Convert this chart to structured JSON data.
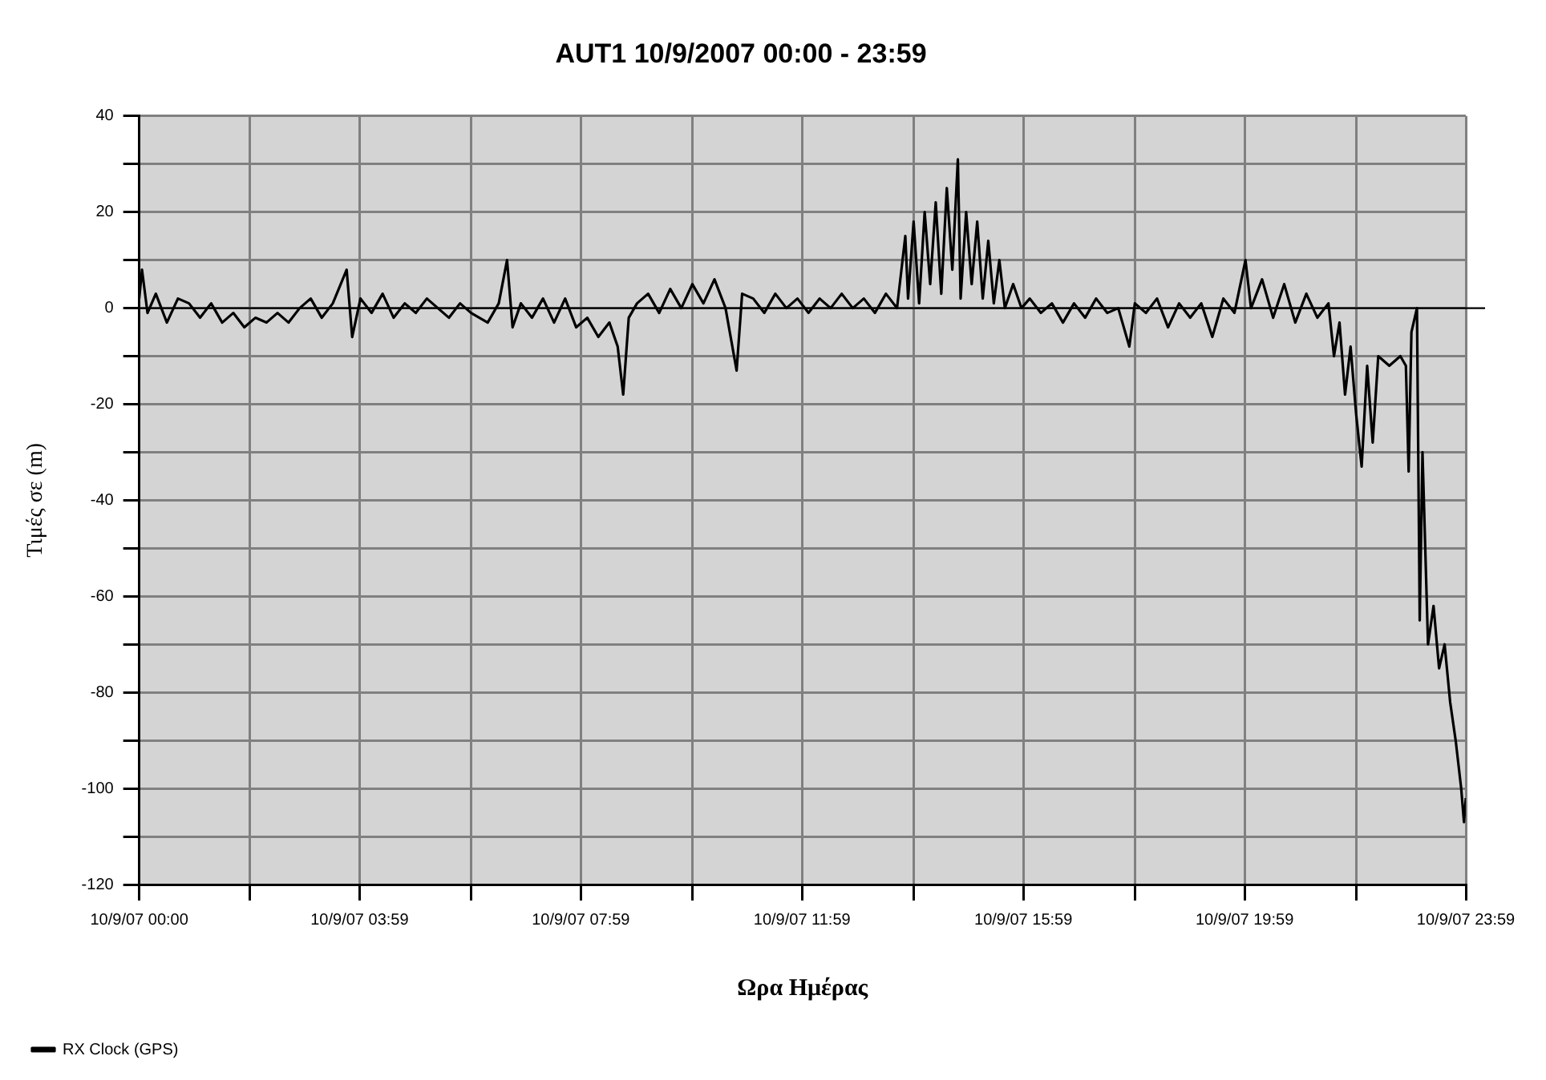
{
  "chart_data": {
    "type": "line",
    "title": "AUT1 10/9/2007 00:00 - 23:59",
    "xlabel": "Ωρα Ημέρας",
    "ylabel": "Τιμές σε (m)",
    "x": [
      "2007-09-10T00:00",
      "2007-09-10T00:03",
      "2007-09-10T00:09",
      "2007-09-10T00:18",
      "2007-09-10T00:30",
      "2007-09-10T00:42",
      "2007-09-10T00:54",
      "2007-09-10T01:06",
      "2007-09-10T01:18",
      "2007-09-10T01:30",
      "2007-09-10T01:42",
      "2007-09-10T01:54",
      "2007-09-10T02:06",
      "2007-09-10T02:18",
      "2007-09-10T02:30",
      "2007-09-10T02:42",
      "2007-09-10T02:54",
      "2007-09-10T03:06",
      "2007-09-10T03:18",
      "2007-09-10T03:30",
      "2007-09-10T03:45",
      "2007-09-10T03:51",
      "2007-09-10T04:00",
      "2007-09-10T04:12",
      "2007-09-10T04:24",
      "2007-09-10T04:36",
      "2007-09-10T04:48",
      "2007-09-10T05:00",
      "2007-09-10T05:12",
      "2007-09-10T05:24",
      "2007-09-10T05:36",
      "2007-09-10T05:48",
      "2007-09-10T06:00",
      "2007-09-10T06:18",
      "2007-09-10T06:30",
      "2007-09-10T06:39",
      "2007-09-10T06:45",
      "2007-09-10T06:54",
      "2007-09-10T07:06",
      "2007-09-10T07:18",
      "2007-09-10T07:30",
      "2007-09-10T07:42",
      "2007-09-10T07:54",
      "2007-09-10T08:06",
      "2007-09-10T08:18",
      "2007-09-10T08:30",
      "2007-09-10T08:39",
      "2007-09-10T08:45",
      "2007-09-10T08:51",
      "2007-09-10T09:00",
      "2007-09-10T09:12",
      "2007-09-10T09:24",
      "2007-09-10T09:36",
      "2007-09-10T09:48",
      "2007-09-10T10:00",
      "2007-09-10T10:12",
      "2007-09-10T10:24",
      "2007-09-10T10:36",
      "2007-09-10T10:48",
      "2007-09-10T10:54",
      "2007-09-10T11:06",
      "2007-09-10T11:18",
      "2007-09-10T11:30",
      "2007-09-10T11:42",
      "2007-09-10T11:54",
      "2007-09-10T12:06",
      "2007-09-10T12:18",
      "2007-09-10T12:30",
      "2007-09-10T12:42",
      "2007-09-10T12:54",
      "2007-09-10T13:06",
      "2007-09-10T13:18",
      "2007-09-10T13:30",
      "2007-09-10T13:42",
      "2007-09-10T13:51",
      "2007-09-10T13:54",
      "2007-09-10T14:00",
      "2007-09-10T14:06",
      "2007-09-10T14:12",
      "2007-09-10T14:18",
      "2007-09-10T14:24",
      "2007-09-10T14:30",
      "2007-09-10T14:36",
      "2007-09-10T14:42",
      "2007-09-10T14:48",
      "2007-09-10T14:51",
      "2007-09-10T14:57",
      "2007-09-10T15:03",
      "2007-09-10T15:09",
      "2007-09-10T15:15",
      "2007-09-10T15:21",
      "2007-09-10T15:27",
      "2007-09-10T15:33",
      "2007-09-10T15:39",
      "2007-09-10T15:48",
      "2007-09-10T15:57",
      "2007-09-10T16:06",
      "2007-09-10T16:18",
      "2007-09-10T16:30",
      "2007-09-10T16:42",
      "2007-09-10T16:54",
      "2007-09-10T17:06",
      "2007-09-10T17:18",
      "2007-09-10T17:30",
      "2007-09-10T17:42",
      "2007-09-10T17:54",
      "2007-09-10T18:00",
      "2007-09-10T18:12",
      "2007-09-10T18:24",
      "2007-09-10T18:36",
      "2007-09-10T18:48",
      "2007-09-10T19:00",
      "2007-09-10T19:12",
      "2007-09-10T19:24",
      "2007-09-10T19:36",
      "2007-09-10T19:48",
      "2007-09-10T20:00",
      "2007-09-10T20:06",
      "2007-09-10T20:18",
      "2007-09-10T20:30",
      "2007-09-10T20:42",
      "2007-09-10T20:54",
      "2007-09-10T21:06",
      "2007-09-10T21:18",
      "2007-09-10T21:30",
      "2007-09-10T21:36",
      "2007-09-10T21:42",
      "2007-09-10T21:48",
      "2007-09-10T21:54",
      "2007-09-10T22:00",
      "2007-09-10T22:06",
      "2007-09-10T22:12",
      "2007-09-10T22:18",
      "2007-09-10T22:24",
      "2007-09-10T22:36",
      "2007-09-10T22:48",
      "2007-09-10T22:54",
      "2007-09-10T22:57",
      "2007-09-10T23:00",
      "2007-09-10T23:06",
      "2007-09-10T23:09",
      "2007-09-10T23:12",
      "2007-09-10T23:18",
      "2007-09-10T23:24",
      "2007-09-10T23:30",
      "2007-09-10T23:36",
      "2007-09-10T23:42",
      "2007-09-10T23:48",
      "2007-09-10T23:54",
      "2007-09-10T23:57",
      "2007-09-10T23:59"
    ],
    "series": [
      {
        "name": "RX Clock (GPS)",
        "color": "#000000",
        "values": [
          2,
          8,
          -1,
          3,
          -3,
          2,
          1,
          -2,
          1,
          -3,
          -1,
          -4,
          -2,
          -3,
          -1,
          -3,
          0,
          2,
          -2,
          1,
          8,
          -6,
          2,
          -1,
          3,
          -2,
          1,
          -1,
          2,
          0,
          -2,
          1,
          -1,
          -3,
          1,
          10,
          -4,
          1,
          -2,
          2,
          -3,
          2,
          -4,
          -2,
          -6,
          -3,
          -8,
          -18,
          -2,
          1,
          3,
          -1,
          4,
          0,
          5,
          1,
          6,
          0,
          -13,
          3,
          2,
          -1,
          3,
          0,
          2,
          -1,
          2,
          0,
          3,
          0,
          2,
          -1,
          3,
          0,
          15,
          2,
          18,
          1,
          20,
          5,
          22,
          3,
          25,
          8,
          31,
          2,
          20,
          5,
          18,
          2,
          14,
          1,
          10,
          0,
          5,
          0,
          2,
          -1,
          1,
          -3,
          1,
          -2,
          2,
          -1,
          0,
          -8,
          1,
          -1,
          2,
          -4,
          1,
          -2,
          1,
          -6,
          2,
          -1,
          10,
          0,
          6,
          -2,
          5,
          -3,
          3,
          -2,
          1,
          -10,
          -3,
          -18,
          -8,
          -22,
          -33,
          -12,
          -28,
          -10,
          -12,
          -10,
          -12,
          -34,
          -5,
          0,
          -65,
          -30,
          -70,
          -62,
          -75,
          -70,
          -82,
          -90,
          -100,
          -107,
          -102
        ]
      }
    ],
    "xlim": [
      "2007-09-10T00:00",
      "2007-09-10T23:59"
    ],
    "xticks": [
      {
        "value": "2007-09-10T00:00",
        "label": "10/9/07 00:00"
      },
      {
        "value": "2007-09-10T02:00",
        "label": null
      },
      {
        "value": "2007-09-10T03:59",
        "label": "10/9/07 03:59"
      },
      {
        "value": "2007-09-10T06:00",
        "label": null
      },
      {
        "value": "2007-09-10T07:59",
        "label": "10/9/07 07:59"
      },
      {
        "value": "2007-09-10T10:00",
        "label": null
      },
      {
        "value": "2007-09-10T11:59",
        "label": "10/9/07 11:59"
      },
      {
        "value": "2007-09-10T14:00",
        "label": null
      },
      {
        "value": "2007-09-10T15:59",
        "label": "10/9/07 15:59"
      },
      {
        "value": "2007-09-10T18:00",
        "label": null
      },
      {
        "value": "2007-09-10T19:59",
        "label": "10/9/07 19:59"
      },
      {
        "value": "2007-09-10T22:00",
        "label": null
      },
      {
        "value": "2007-09-10T23:59",
        "label": "10/9/07 23:59"
      }
    ],
    "ylim": [
      -120,
      40
    ],
    "yticks": [
      -120,
      {
        "value": -110,
        "label": null
      },
      -100,
      {
        "value": -90,
        "label": null
      },
      -80,
      {
        "value": -70,
        "label": null
      },
      -60,
      {
        "value": -50,
        "label": null
      },
      -40,
      {
        "value": -30,
        "label": null
      },
      -20,
      {
        "value": -10,
        "label": null
      },
      0,
      {
        "value": 10,
        "label": null
      },
      20,
      {
        "value": 30,
        "label": null
      },
      40
    ],
    "ref_lines": [
      {
        "axis": "y",
        "value": 0,
        "color": "#000000"
      }
    ],
    "grid": true,
    "legend": "bottom left",
    "marker": "none",
    "line_style": "solid"
  }
}
